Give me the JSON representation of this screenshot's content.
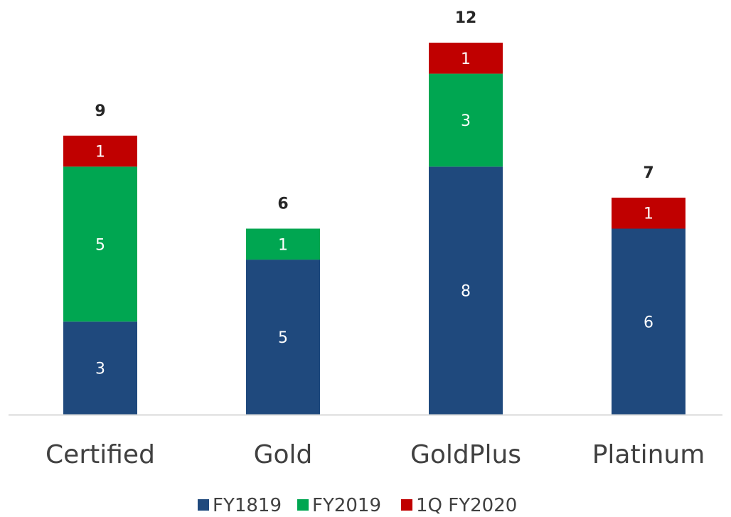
{
  "chart_data": {
    "type": "bar",
    "stacked": true,
    "categories": [
      "Certified",
      "Gold",
      "GoldPlus",
      "Platinum"
    ],
    "series": [
      {
        "name": "FY1819",
        "values": [
          3,
          5,
          8,
          6
        ],
        "color": "#1f497d"
      },
      {
        "name": "FY2019",
        "values": [
          5,
          1,
          3,
          0
        ],
        "color": "#00a651"
      },
      {
        "name": "1Q FY2020",
        "values": [
          1,
          0,
          1,
          1
        ],
        "color": "#c00000"
      }
    ],
    "totals": [
      9,
      6,
      12,
      7
    ],
    "ylim": [
      0,
      12
    ],
    "grid": false,
    "legend": "bottom",
    "baseline_color": "#d9d9d9"
  }
}
